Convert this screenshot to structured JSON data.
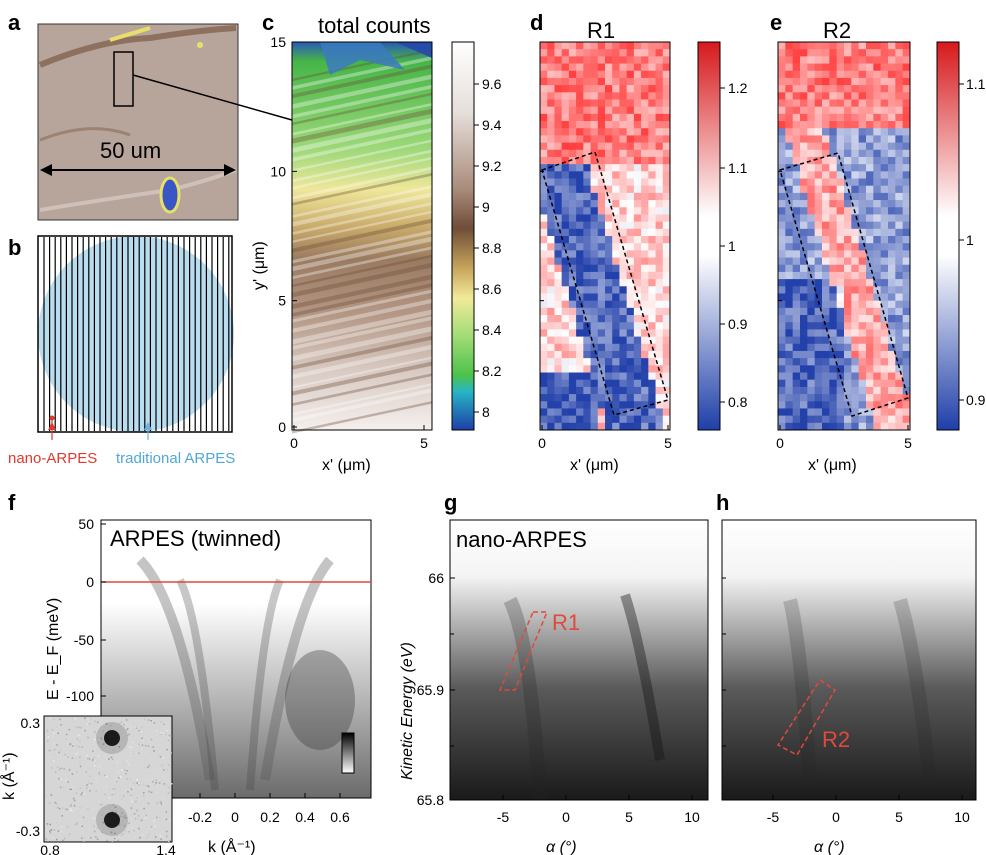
{
  "figure": {
    "panel_labels": [
      "a",
      "b",
      "c",
      "d",
      "e",
      "f",
      "g",
      "h"
    ],
    "a": {
      "scalebar_label": "50 um"
    },
    "b": {
      "nano_label": "nano-ARPES",
      "traditional_label": "traditional ARPES",
      "colors": {
        "nano": "#e03a2f",
        "traditional": "#6ab3e0",
        "circle_fill": "#b9dcef"
      }
    },
    "c": {
      "title": "total counts",
      "xlabel": "x' (μm)",
      "ylabel": "y' (μm)",
      "xticks": [
        "0",
        "5"
      ],
      "yticks": [
        "0",
        "5",
        "10",
        "15"
      ],
      "colorbar_ticks": [
        "9.6",
        "9.4",
        "9.2",
        "9",
        "8.8",
        "8.6",
        "8.4",
        "8.2",
        "8"
      ]
    },
    "d": {
      "title": "R1",
      "xlabel": "x' (μm)",
      "xticks": [
        "0",
        "5"
      ],
      "colorbar_ticks": [
        "1.2",
        "1.1",
        "1",
        "0.9",
        "0.8"
      ]
    },
    "e": {
      "title": "R2",
      "xlabel": "x' (μm)",
      "xticks": [
        "0",
        "5"
      ],
      "colorbar_ticks": [
        "1.1",
        "1",
        "0.9"
      ]
    },
    "f": {
      "title": "ARPES (twinned)",
      "xlabel": "k (Å⁻¹)",
      "ylabel": "E - E_F (meV)",
      "xticks": [
        "-0.2",
        "0",
        "0.2",
        "0.4",
        "0.6"
      ],
      "yticks": [
        "50",
        "0",
        "-50",
        "-100"
      ],
      "inset": {
        "ylabel": "k (Å⁻¹)",
        "yticks": [
          "0.3",
          "-0.3"
        ],
        "xticks": [
          "0.8",
          "1.4"
        ]
      },
      "fermi_line_color": "#e04a3a"
    },
    "g": {
      "title": "nano-ARPES",
      "ylabel": "Kinetic Energy (eV)",
      "yticks": [
        "66",
        "65.9",
        "65.8"
      ],
      "xlabel": "α (°)",
      "xticks": [
        "-5",
        "0",
        "5",
        "10"
      ],
      "region_label": "R1"
    },
    "h": {
      "xlabel": "α (°)",
      "xticks": [
        "-5",
        "0",
        "5",
        "10"
      ],
      "region_label": "R2"
    }
  }
}
